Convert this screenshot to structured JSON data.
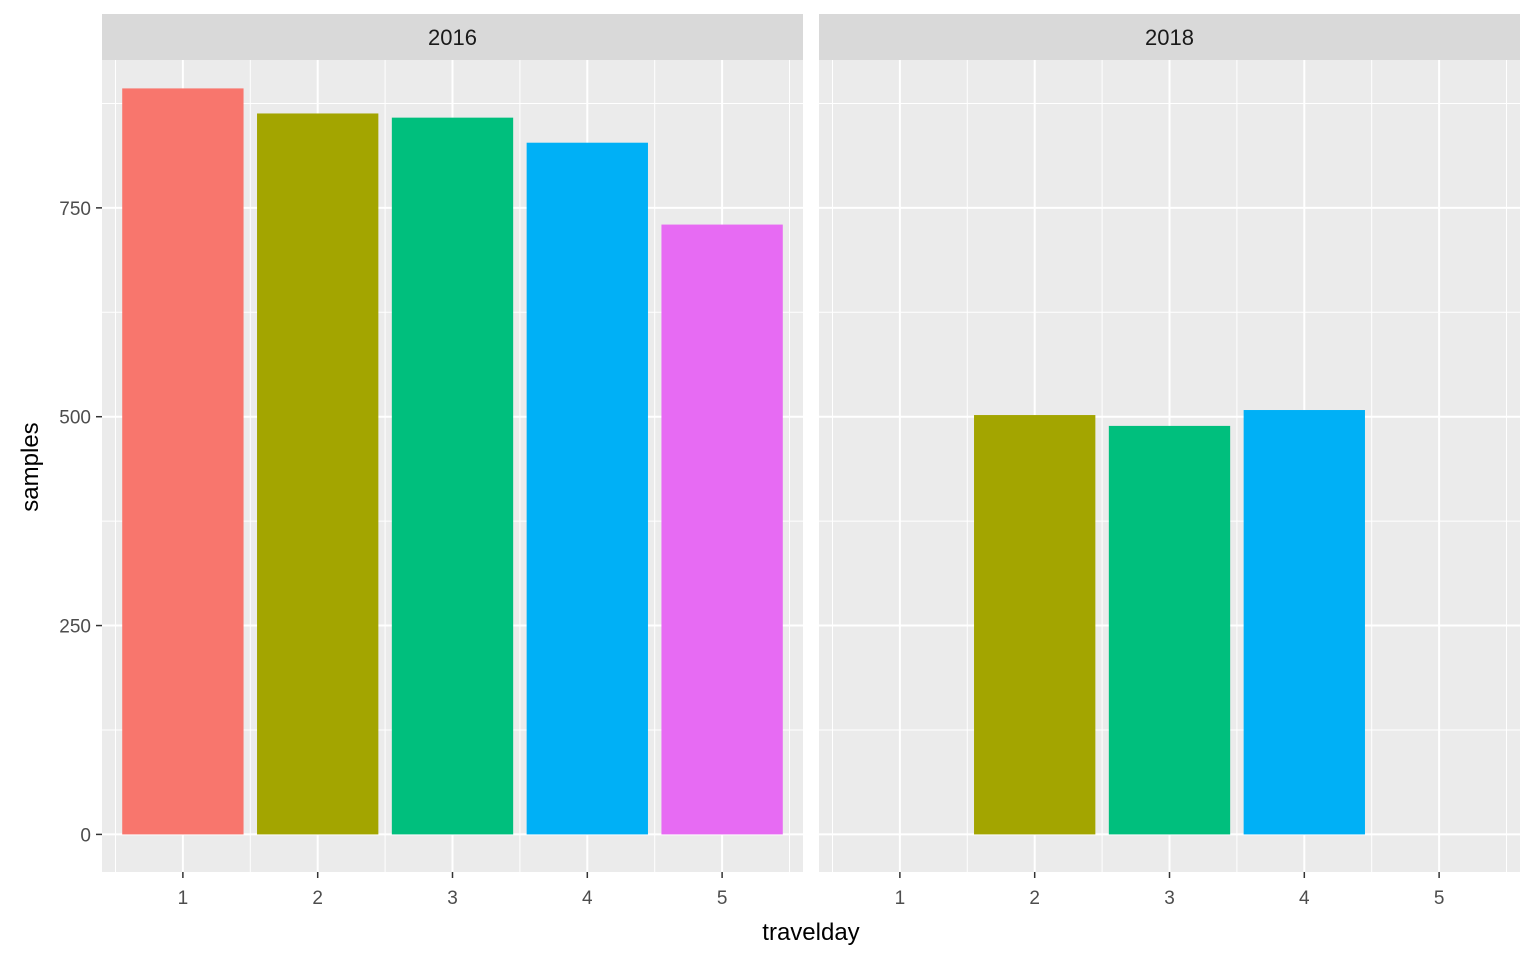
{
  "chart_data": {
    "type": "bar",
    "xlabel": "travelday",
    "ylabel": "samples",
    "ylim": [
      -45,
      927
    ],
    "y_ticks": [
      0,
      250,
      500,
      750
    ],
    "categories": [
      "1",
      "2",
      "3",
      "4",
      "5"
    ],
    "facets": [
      {
        "name": "2016",
        "values": [
          893,
          863,
          858,
          828,
          730
        ]
      },
      {
        "name": "2018",
        "values": [
          null,
          502,
          489,
          508,
          null
        ]
      }
    ],
    "bar_colors": [
      "#F8766D",
      "#A3A500",
      "#00BF7D",
      "#00B0F6",
      "#E76BF3"
    ],
    "panel_background": "#EBEBEB",
    "strip_background": "#D9D9D9",
    "grid_color": "#FFFFFF",
    "grid": true,
    "legend": "none"
  }
}
